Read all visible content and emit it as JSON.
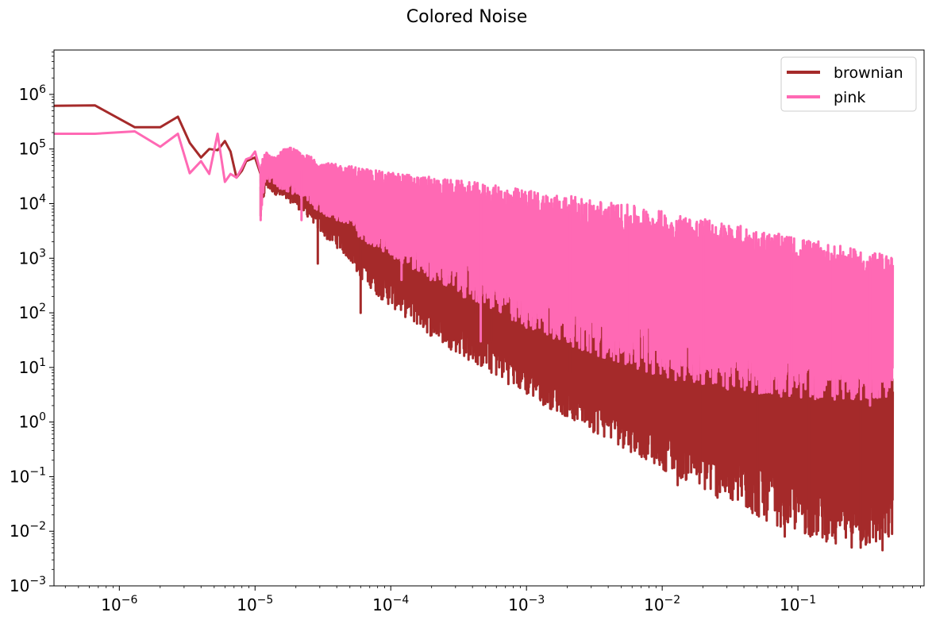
{
  "chart_data": {
    "type": "line",
    "title": "Colored Noise",
    "xlabel": "",
    "ylabel": "",
    "xscale": "log",
    "yscale": "log",
    "xlim": [
      3.3e-07,
      0.85
    ],
    "ylim": [
      0.001,
      6500000
    ],
    "grid": false,
    "legend_placement": "top-right",
    "x_ticks": [
      {
        "base": "10",
        "exp": "−6",
        "value": 1e-06
      },
      {
        "base": "10",
        "exp": "−5",
        "value": 1e-05
      },
      {
        "base": "10",
        "exp": "−4",
        "value": 0.0001
      },
      {
        "base": "10",
        "exp": "−3",
        "value": 0.001
      },
      {
        "base": "10",
        "exp": "−2",
        "value": 0.01
      },
      {
        "base": "10",
        "exp": "−1",
        "value": 0.1
      }
    ],
    "y_ticks": [
      {
        "base": "10",
        "exp": "−3",
        "value": 0.001
      },
      {
        "base": "10",
        "exp": "−2",
        "value": 0.01
      },
      {
        "base": "10",
        "exp": "−1",
        "value": 0.1
      },
      {
        "base": "10",
        "exp": "0",
        "value": 1
      },
      {
        "base": "10",
        "exp": "1",
        "value": 10
      },
      {
        "base": "10",
        "exp": "2",
        "value": 100
      },
      {
        "base": "10",
        "exp": "3",
        "value": 1000
      },
      {
        "base": "10",
        "exp": "4",
        "value": 10000
      },
      {
        "base": "10",
        "exp": "5",
        "value": 100000
      },
      {
        "base": "10",
        "exp": "6",
        "value": 1000000
      }
    ],
    "series": [
      {
        "name": "brownian",
        "color": "#a52a2a",
        "x": [
          3.3e-07,
          6.6e-07,
          1.3e-06,
          2e-06,
          2.7e-06,
          3.3e-06,
          4e-06,
          4.6e-06,
          5.3e-06,
          6e-06,
          6.6e-06,
          7.3e-06,
          8e-06,
          8.6e-06,
          9.3e-06,
          1e-05,
          1.1e-05,
          1.2e-05,
          1.4e-05,
          1.6e-05,
          1.9e-05,
          2.2e-05,
          2.6e-05,
          3e-05,
          3.5e-05,
          4.1e-05,
          4.8e-05,
          5.5e-05,
          6e-05,
          7e-05,
          8e-05,
          0.0001,
          0.00013,
          0.00017,
          0.00022,
          0.0003,
          0.0004,
          0.00055,
          0.00075,
          0.001,
          0.0014,
          0.002,
          0.0028,
          0.004,
          0.0056,
          0.008,
          0.011,
          0.016,
          0.022,
          0.032,
          0.045,
          0.063,
          0.09,
          0.13,
          0.18,
          0.25,
          0.35,
          0.5
        ],
        "upper": [
          620000,
          630000,
          250000,
          250000,
          390000,
          130000,
          70000,
          100000,
          95000,
          140000,
          90000,
          30000,
          40000,
          60000,
          65000,
          70000,
          40000,
          55000,
          50000,
          45000,
          40000,
          38000,
          33000,
          30000,
          27000,
          24000,
          21000,
          18000,
          16500,
          14000,
          12000,
          9500,
          7500,
          6000,
          4700,
          3700,
          2900,
          2200,
          1700,
          1300,
          1000,
          780,
          600,
          460,
          360,
          270,
          210,
          160,
          125,
          95,
          73,
          56,
          43,
          33,
          25,
          19,
          14,
          10
        ],
        "lower": [
          620000,
          630000,
          250000,
          250000,
          390000,
          130000,
          70000,
          100000,
          95000,
          140000,
          90000,
          8500,
          30000,
          40000,
          20000,
          30000,
          6000,
          20000,
          15000,
          12000,
          10000,
          7000,
          5000,
          3000,
          2000,
          1500,
          1000,
          600,
          420,
          300,
          200,
          130,
          80,
          50,
          30,
          19,
          12,
          7.5,
          4.8,
          3.0,
          1.9,
          1.2,
          0.75,
          0.47,
          0.3,
          0.19,
          0.12,
          0.075,
          0.047,
          0.03,
          0.02,
          0.014,
          0.01,
          0.0075,
          0.006,
          0.005,
          0.0048,
          0.0065
        ],
        "dips": [
          [
            1.1e-05,
            6000
          ],
          [
            2.9e-05,
            800
          ],
          [
            6e-05,
            100
          ],
          [
            0.00014,
            1000
          ],
          [
            0.00022,
            600
          ],
          [
            0.00042,
            100
          ],
          [
            0.00055,
            30
          ],
          [
            0.0012,
            30
          ],
          [
            0.0021,
            8
          ],
          [
            0.0045,
            3
          ],
          [
            0.0075,
            0.3
          ],
          [
            0.013,
            0.07
          ],
          [
            0.019,
            0.2
          ],
          [
            0.032,
            0.04
          ],
          [
            0.05,
            0.02
          ],
          [
            0.08,
            0.008
          ],
          [
            0.12,
            0.012
          ],
          [
            0.19,
            0.006
          ],
          [
            0.29,
            0.005
          ],
          [
            0.42,
            0.0045
          ]
        ]
      },
      {
        "name": "pink",
        "color": "#ff69b4",
        "x": [
          3.3e-07,
          6.6e-07,
          1.3e-06,
          2e-06,
          2.7e-06,
          3.3e-06,
          4e-06,
          4.6e-06,
          5.3e-06,
          6e-06,
          6.6e-06,
          7.3e-06,
          8e-06,
          8.6e-06,
          9.3e-06,
          1e-05,
          1.1e-05,
          1.2e-05,
          1.4e-05,
          1.6e-05,
          1.9e-05,
          2.2e-05,
          2.6e-05,
          3e-05,
          3.5e-05,
          4.1e-05,
          4.8e-05,
          5.5e-05,
          6e-05,
          7e-05,
          8e-05,
          0.0001,
          0.00013,
          0.00017,
          0.00022,
          0.0003,
          0.0004,
          0.00055,
          0.00075,
          0.001,
          0.0014,
          0.002,
          0.0028,
          0.004,
          0.0056,
          0.008,
          0.011,
          0.016,
          0.022,
          0.032,
          0.045,
          0.063,
          0.09,
          0.13,
          0.18,
          0.25,
          0.35,
          0.5
        ],
        "upper": [
          190000,
          190000,
          210000,
          110000,
          190000,
          36000,
          60000,
          35000,
          190000,
          25000,
          35000,
          30000,
          45000,
          65000,
          70000,
          90000,
          55000,
          90000,
          70000,
          100000,
          110000,
          80000,
          75000,
          60000,
          55000,
          52000,
          50000,
          48000,
          46000,
          43000,
          40000,
          38000,
          35000,
          32000,
          30000,
          27000,
          25000,
          22000,
          20000,
          18000,
          16000,
          14000,
          12500,
          11000,
          9500,
          8200,
          7000,
          6000,
          5100,
          4300,
          3600,
          3000,
          2500,
          2100,
          1800,
          1500,
          1300,
          1100
        ],
        "lower": [
          190000,
          190000,
          210000,
          110000,
          190000,
          36000,
          60000,
          35000,
          190000,
          25000,
          35000,
          30000,
          20000,
          30000,
          45000,
          40000,
          5000,
          30000,
          20000,
          18000,
          15000,
          12000,
          9000,
          7000,
          5500,
          4500,
          3500,
          2800,
          2300,
          1800,
          1400,
          1000,
          700,
          500,
          330,
          230,
          160,
          110,
          75,
          52,
          37,
          26,
          19,
          14,
          10.5,
          8,
          6.3,
          5.2,
          4.4,
          3.8,
          3.3,
          3.0,
          2.8,
          2.6,
          2.5,
          2.5,
          2.6,
          3.0
        ],
        "dips": [
          [
            1.1e-05,
            5000
          ],
          [
            2.2e-05,
            5000
          ],
          [
            5.8e-05,
            2500
          ],
          [
            0.00012,
            400
          ],
          [
            0.00046,
            30
          ],
          [
            0.00078,
            200
          ],
          [
            0.0021,
            100
          ],
          [
            0.0055,
            40
          ],
          [
            0.012,
            80
          ],
          [
            0.02,
            15
          ],
          [
            0.044,
            10
          ],
          [
            0.09,
            5
          ],
          [
            0.18,
            3
          ],
          [
            0.34,
            2
          ]
        ]
      }
    ]
  }
}
